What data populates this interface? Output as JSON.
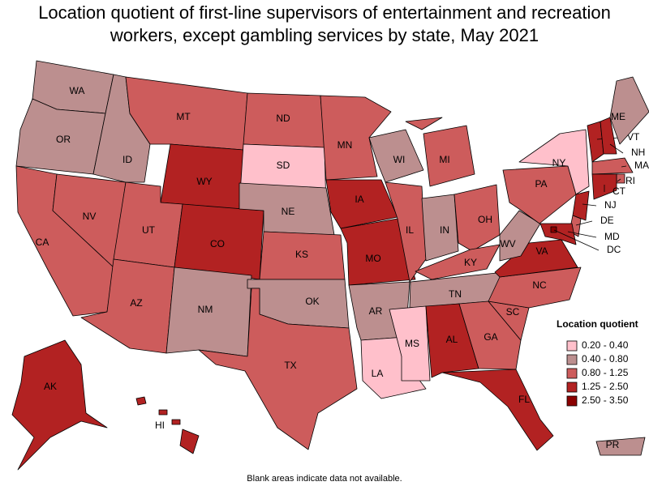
{
  "title": "Location quotient of first-line supervisors of entertainment and recreation workers, except gambling services by state, May 2021",
  "legend": {
    "title": "Location quotient",
    "items": [
      {
        "label": "0.20 - 0.40",
        "color": "#ffc0cb"
      },
      {
        "label": "0.40 - 0.80",
        "color": "#bc8f8f"
      },
      {
        "label": "0.80 - 1.25",
        "color": "#cd5c5c"
      },
      {
        "label": "1.25 - 2.50",
        "color": "#b22222"
      },
      {
        "label": "2.50 - 3.50",
        "color": "#8b0000"
      }
    ]
  },
  "states": [
    {
      "abbr": "WA",
      "color": "#bc8f8f"
    },
    {
      "abbr": "OR",
      "color": "#bc8f8f"
    },
    {
      "abbr": "CA",
      "color": "#cd5c5c"
    },
    {
      "abbr": "NV",
      "color": "#cd5c5c"
    },
    {
      "abbr": "ID",
      "color": "#bc8f8f"
    },
    {
      "abbr": "MT",
      "color": "#cd5c5c"
    },
    {
      "abbr": "WY",
      "color": "#b22222"
    },
    {
      "abbr": "UT",
      "color": "#cd5c5c"
    },
    {
      "abbr": "CO",
      "color": "#b22222"
    },
    {
      "abbr": "AZ",
      "color": "#cd5c5c"
    },
    {
      "abbr": "NM",
      "color": "#bc8f8f"
    },
    {
      "abbr": "ND",
      "color": "#cd5c5c"
    },
    {
      "abbr": "SD",
      "color": "#ffc0cb"
    },
    {
      "abbr": "NE",
      "color": "#bc8f8f"
    },
    {
      "abbr": "KS",
      "color": "#cd5c5c"
    },
    {
      "abbr": "OK",
      "color": "#bc8f8f"
    },
    {
      "abbr": "TX",
      "color": "#cd5c5c"
    },
    {
      "abbr": "MN",
      "color": "#cd5c5c"
    },
    {
      "abbr": "IA",
      "color": "#b22222"
    },
    {
      "abbr": "MO",
      "color": "#b22222"
    },
    {
      "abbr": "AR",
      "color": "#bc8f8f"
    },
    {
      "abbr": "LA",
      "color": "#ffc0cb"
    },
    {
      "abbr": "WI",
      "color": "#bc8f8f"
    },
    {
      "abbr": "IL",
      "color": "#cd5c5c"
    },
    {
      "abbr": "MI",
      "color": "#cd5c5c"
    },
    {
      "abbr": "IN",
      "color": "#bc8f8f"
    },
    {
      "abbr": "OH",
      "color": "#cd5c5c"
    },
    {
      "abbr": "KY",
      "color": "#cd5c5c"
    },
    {
      "abbr": "TN",
      "color": "#bc8f8f"
    },
    {
      "abbr": "MS",
      "color": "#ffc0cb"
    },
    {
      "abbr": "AL",
      "color": "#b22222"
    },
    {
      "abbr": "GA",
      "color": "#cd5c5c"
    },
    {
      "abbr": "FL",
      "color": "#b22222"
    },
    {
      "abbr": "SC",
      "color": "#cd5c5c"
    },
    {
      "abbr": "NC",
      "color": "#cd5c5c"
    },
    {
      "abbr": "VA",
      "color": "#b22222"
    },
    {
      "abbr": "WV",
      "color": "#bc8f8f"
    },
    {
      "abbr": "PA",
      "color": "#cd5c5c"
    },
    {
      "abbr": "NY",
      "color": "#ffc0cb"
    },
    {
      "abbr": "VT",
      "color": "#b22222"
    },
    {
      "abbr": "NH",
      "color": "#b22222"
    },
    {
      "abbr": "ME",
      "color": "#bc8f8f"
    },
    {
      "abbr": "MA",
      "color": "#cd5c5c"
    },
    {
      "abbr": "RI",
      "color": "#cd5c5c"
    },
    {
      "abbr": "CT",
      "color": "#b22222"
    },
    {
      "abbr": "NJ",
      "color": "#b22222"
    },
    {
      "abbr": "DE",
      "color": "#cd5c5c"
    },
    {
      "abbr": "MD",
      "color": "#b22222"
    },
    {
      "abbr": "DC",
      "color": "#8b0000"
    },
    {
      "abbr": "AK",
      "color": "#b22222"
    },
    {
      "abbr": "HI",
      "color": "#b22222"
    },
    {
      "abbr": "PR",
      "color": "#bc8f8f"
    }
  ],
  "footnote": "Blank areas indicate data not available."
}
